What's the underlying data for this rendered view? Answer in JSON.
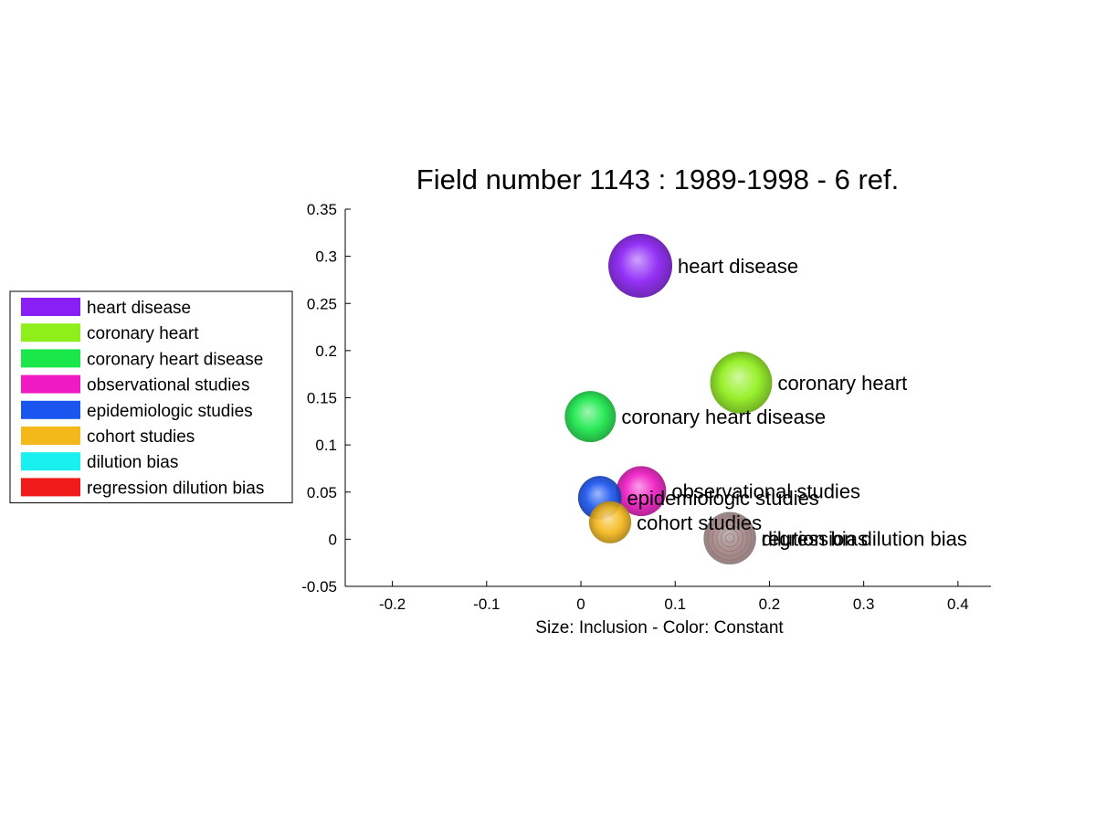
{
  "chart_data": {
    "type": "scatter",
    "title": "Field number 1143 : 1989-1998  - 6 ref.",
    "xlabel": "Size: Inclusion - Color: Constant",
    "ylabel": "",
    "xlim": [
      -0.25,
      0.435
    ],
    "ylim": [
      -0.05,
      0.35
    ],
    "xticks": [
      -0.2,
      -0.1,
      0,
      0.1,
      0.2,
      0.3,
      0.4
    ],
    "xtick_labels": [
      "-0.2",
      "-0.1",
      "0",
      "0.1",
      "0.2",
      "0.3",
      "0.4"
    ],
    "yticks": [
      -0.05,
      0,
      0.05,
      0.1,
      0.15,
      0.2,
      0.25,
      0.3,
      0.35
    ],
    "ytick_labels": [
      "-0.05",
      "0",
      "0.05",
      "0.1",
      "0.15",
      "0.2",
      "0.25",
      "0.3",
      "0.35"
    ],
    "grid": false,
    "legend_position": "left",
    "series": [
      {
        "name": "heart disease",
        "x": 0.063,
        "y": 0.29,
        "size": 1.0,
        "color": "#8a1ff5"
      },
      {
        "name": "coronary heart",
        "x": 0.17,
        "y": 0.166,
        "size": 0.97,
        "color": "#8fef1a"
      },
      {
        "name": "coronary heart disease",
        "x": 0.01,
        "y": 0.13,
        "size": 0.8,
        "color": "#1ae84a"
      },
      {
        "name": "observational studies",
        "x": 0.064,
        "y": 0.051,
        "size": 0.78,
        "color": "#f01ac4"
      },
      {
        "name": "epidemiologic studies",
        "x": 0.02,
        "y": 0.044,
        "size": 0.68,
        "color": "#1a55f0"
      },
      {
        "name": "cohort studies",
        "x": 0.031,
        "y": 0.018,
        "size": 0.66,
        "color": "#f5b81a"
      },
      {
        "name": "dilution bias",
        "x": 0.158,
        "y": 0.001,
        "size": 0.82,
        "color": "#1af0f0"
      },
      {
        "name": "regression dilution bias",
        "x": 0.158,
        "y": 0.001,
        "size": 0.82,
        "color": "#f01a1a"
      }
    ]
  }
}
